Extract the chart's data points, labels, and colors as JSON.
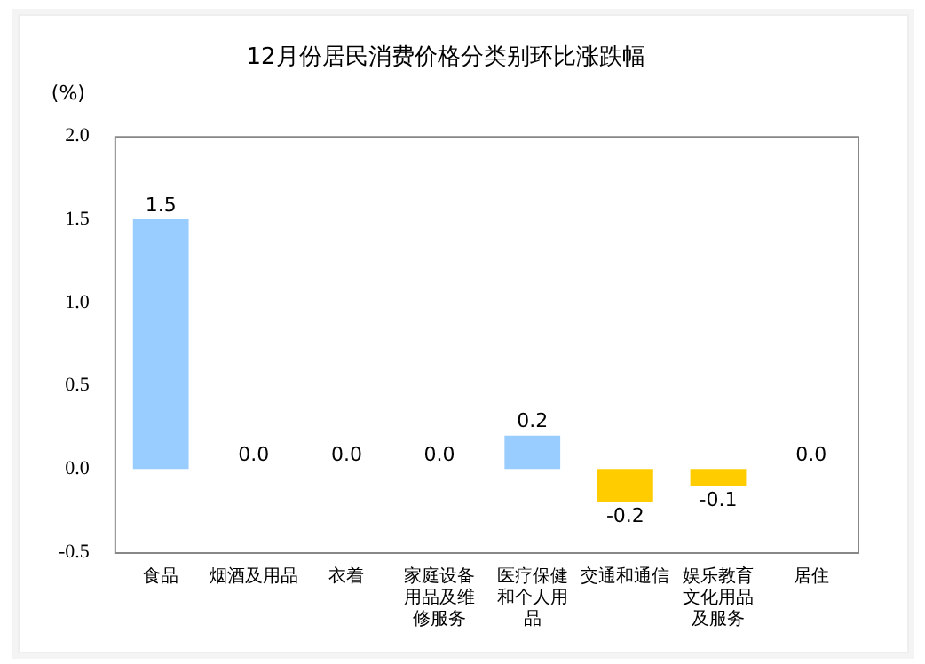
{
  "chart_data": {
    "type": "bar",
    "title": "12月份居民消费价格分类别环比涨跌幅",
    "ylabel": "(%)",
    "categories": [
      "食品",
      "烟酒及用品",
      "衣着",
      "家庭设备用品及维修服务",
      "医疗保健和个人用品",
      "交通和通信",
      "娱乐教育文化用品及服务",
      "居住"
    ],
    "values": [
      1.5,
      0.0,
      0.0,
      0.0,
      0.2,
      -0.2,
      -0.1,
      0.0
    ],
    "colors": [
      "#99ccff",
      "#99ccff",
      "#99ccff",
      "#99ccff",
      "#99ccff",
      "#ffcc00",
      "#ffcc00",
      "#99ccff"
    ],
    "value_labels": [
      "1.5",
      "0.0",
      "0.0",
      "0.0",
      "0.2",
      "-0.2",
      "-0.1",
      "0.0"
    ],
    "ylim": [
      -0.5,
      2.0
    ],
    "yticks": [
      {
        "value": -0.5,
        "label": "-0.5"
      },
      {
        "value": 0,
        "label": "0.0"
      },
      {
        "value": 0.5,
        "label": "0.5"
      },
      {
        "value": 1,
        "label": "1.0"
      },
      {
        "value": 1.5,
        "label": "1.5"
      },
      {
        "value": 2,
        "label": "2.0"
      }
    ],
    "grid": false,
    "legend": false
  }
}
